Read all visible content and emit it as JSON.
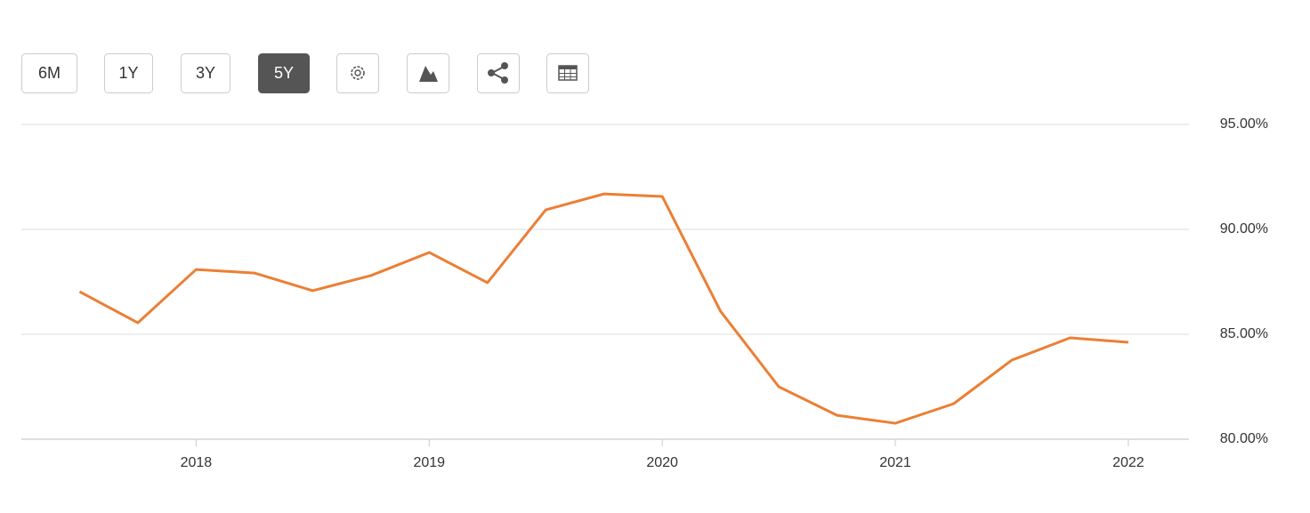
{
  "toolbar": {
    "buttons": [
      "6M",
      "1Y",
      "3Y",
      "5Y"
    ],
    "active": 3
  },
  "chart_data": {
    "type": "line",
    "x": [
      2017.5,
      2017.75,
      2018,
      2018.25,
      2018.5,
      2018.75,
      2019,
      2019.25,
      2019.5,
      2019.75,
      2020,
      2020.25,
      2020.5,
      2020.75,
      2021,
      2021.25,
      2021.5,
      2021.75,
      2022
    ],
    "series": [
      {
        "color": "#eb7f35",
        "values": [
          87.03,
          85.55,
          88.09,
          87.92,
          87.08,
          87.8,
          88.9,
          87.46,
          90.93,
          91.69,
          91.57,
          86.1,
          82.5,
          81.14,
          80.76,
          81.69,
          83.77,
          84.83,
          84.62
        ]
      }
    ],
    "xlim": [
      2017.25,
      2022.26
    ],
    "xticks": [
      2018,
      2019,
      2020,
      2021,
      2022
    ],
    "ylim": [
      80,
      95
    ],
    "yticks": [
      {
        "value": 80,
        "label": "80.00%"
      },
      {
        "value": 85,
        "label": "85.00%"
      },
      {
        "value": 90,
        "label": "90.00%"
      },
      {
        "value": 95,
        "label": "95.00%"
      }
    ],
    "grid": true
  }
}
